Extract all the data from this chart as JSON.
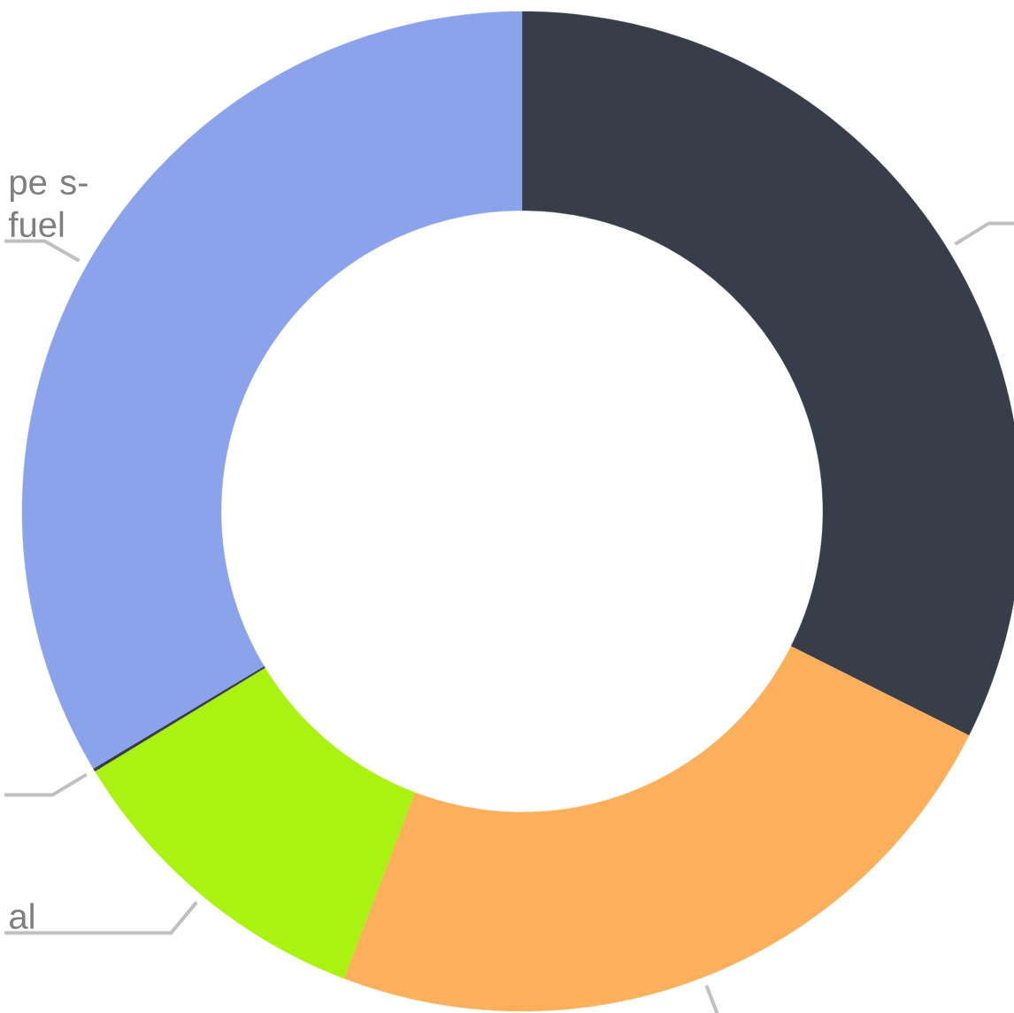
{
  "chart_data": {
    "type": "donut",
    "categories": [
      null,
      null,
      "al",
      null,
      "pe s-fuel"
    ],
    "values": [
      32.4,
      23.4,
      10.5,
      0.1,
      33.6
    ],
    "colors": [
      "#383d4a",
      "#fdb05c",
      "#aaf212",
      "#383d4a",
      "#8aa3ea"
    ]
  }
}
